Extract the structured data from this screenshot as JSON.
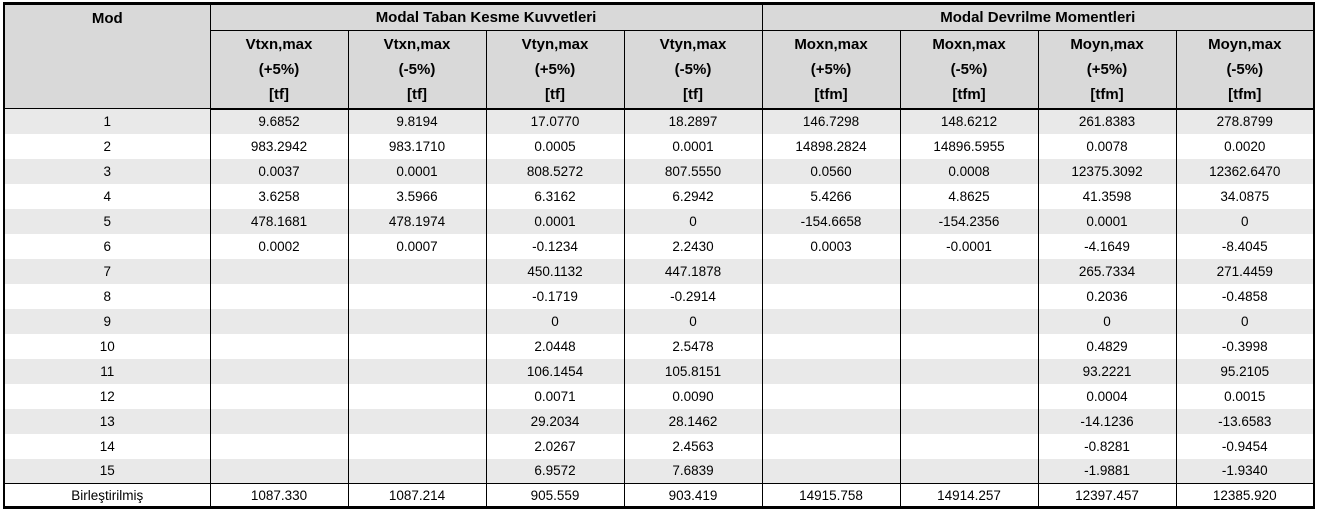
{
  "table": {
    "mod_header": "Mod",
    "groups": [
      {
        "label": "Modal Taban Kesme Kuvvetleri"
      },
      {
        "label": "Modal Devrilme Momentleri"
      }
    ],
    "columns": [
      {
        "name": "Vtxn,max",
        "pct": "(+5%)",
        "unit": "[tf]"
      },
      {
        "name": "Vtxn,max",
        "pct": "(-5%)",
        "unit": "[tf]"
      },
      {
        "name": "Vtyn,max",
        "pct": "(+5%)",
        "unit": "[tf]"
      },
      {
        "name": "Vtyn,max",
        "pct": "(-5%)",
        "unit": "[tf]"
      },
      {
        "name": "Moxn,max",
        "pct": "(+5%)",
        "unit": "[tfm]"
      },
      {
        "name": "Moxn,max",
        "pct": "(-5%)",
        "unit": "[tfm]"
      },
      {
        "name": "Moyn,max",
        "pct": "(+5%)",
        "unit": "[tfm]"
      },
      {
        "name": "Moyn,max",
        "pct": "(-5%)",
        "unit": "[tfm]"
      }
    ],
    "rows": [
      {
        "mod": "1",
        "values": [
          "9.6852",
          "9.8194",
          "17.0770",
          "18.2897",
          "146.7298",
          "148.6212",
          "261.8383",
          "278.8799"
        ]
      },
      {
        "mod": "2",
        "values": [
          "983.2942",
          "983.1710",
          "0.0005",
          "0.0001",
          "14898.2824",
          "14896.5955",
          "0.0078",
          "0.0020"
        ]
      },
      {
        "mod": "3",
        "values": [
          "0.0037",
          "0.0001",
          "808.5272",
          "807.5550",
          "0.0560",
          "0.0008",
          "12375.3092",
          "12362.6470"
        ]
      },
      {
        "mod": "4",
        "values": [
          "3.6258",
          "3.5966",
          "6.3162",
          "6.2942",
          "5.4266",
          "4.8625",
          "41.3598",
          "34.0875"
        ]
      },
      {
        "mod": "5",
        "values": [
          "478.1681",
          "478.1974",
          "0.0001",
          "0",
          "-154.6658",
          "-154.2356",
          "0.0001",
          "0"
        ]
      },
      {
        "mod": "6",
        "values": [
          "0.0002",
          "0.0007",
          "-0.1234",
          "2.2430",
          "0.0003",
          "-0.0001",
          "-4.1649",
          "-8.4045"
        ]
      },
      {
        "mod": "7",
        "values": [
          "",
          "",
          "450.1132",
          "447.1878",
          "",
          "",
          "265.7334",
          "271.4459"
        ]
      },
      {
        "mod": "8",
        "values": [
          "",
          "",
          "-0.1719",
          "-0.2914",
          "",
          "",
          "0.2036",
          "-0.4858"
        ]
      },
      {
        "mod": "9",
        "values": [
          "",
          "",
          "0",
          "0",
          "",
          "",
          "0",
          "0"
        ]
      },
      {
        "mod": "10",
        "values": [
          "",
          "",
          "2.0448",
          "2.5478",
          "",
          "",
          "0.4829",
          "-0.3998"
        ]
      },
      {
        "mod": "11",
        "values": [
          "",
          "",
          "106.1454",
          "105.8151",
          "",
          "",
          "93.2221",
          "95.2105"
        ]
      },
      {
        "mod": "12",
        "values": [
          "",
          "",
          "0.0071",
          "0.0090",
          "",
          "",
          "0.0004",
          "0.0015"
        ]
      },
      {
        "mod": "13",
        "values": [
          "",
          "",
          "29.2034",
          "28.1462",
          "",
          "",
          "-14.1236",
          "-13.6583"
        ]
      },
      {
        "mod": "14",
        "values": [
          "",
          "",
          "2.0267",
          "2.4563",
          "",
          "",
          "-0.8281",
          "-0.9454"
        ]
      },
      {
        "mod": "15",
        "values": [
          "",
          "",
          "6.9572",
          "7.6839",
          "",
          "",
          "-1.9881",
          "-1.9340"
        ]
      }
    ],
    "combined": {
      "mod": "Birleştirilmiş",
      "values": [
        "1087.330",
        "1087.214",
        "905.559",
        "903.419",
        "14915.758",
        "14914.257",
        "12397.457",
        "12385.920"
      ]
    },
    "colors": {
      "header_bg": "#d9d9d9",
      "stripe_bg": "#e9e9e9",
      "border": "#000000",
      "text": "#000000"
    }
  }
}
